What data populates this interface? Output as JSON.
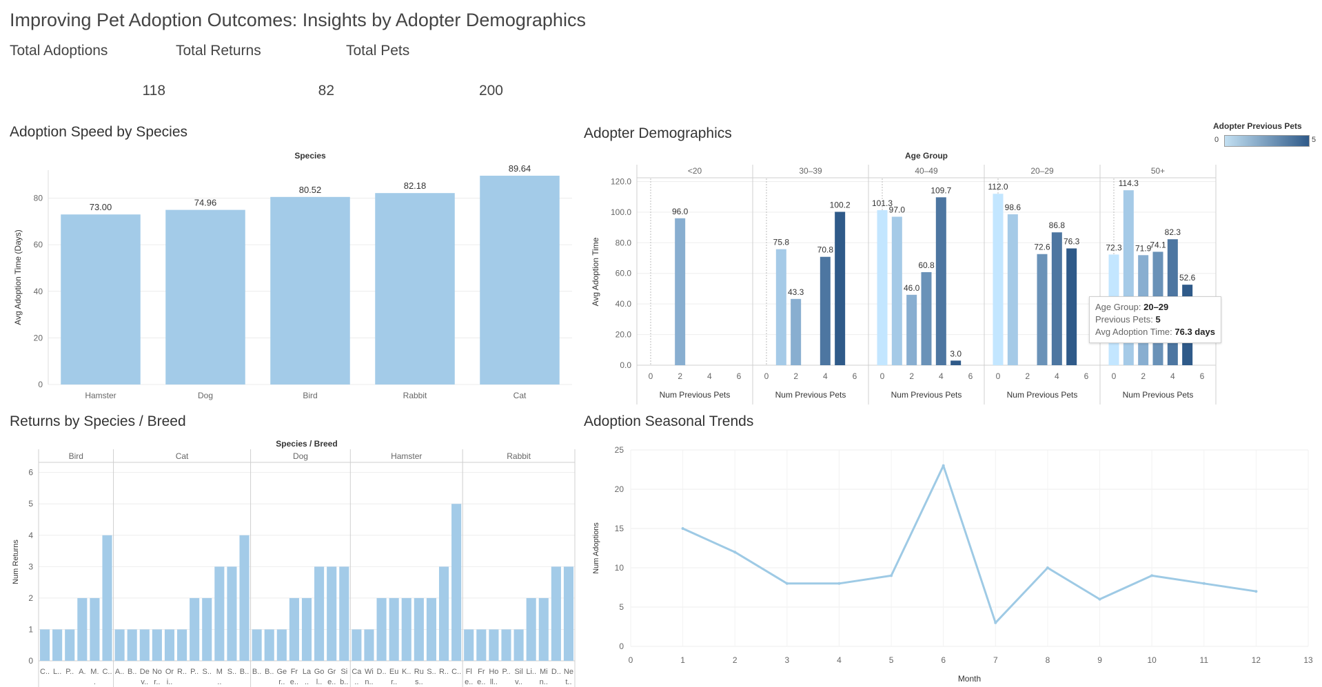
{
  "dashboard": {
    "title": "Improving Pet Adoption Outcomes: Insights by Adopter Demographics",
    "kpis": [
      {
        "label": "Total Adoptions",
        "value": "118"
      },
      {
        "label": "Total Returns",
        "value": "82"
      },
      {
        "label": "Total Pets",
        "value": "200"
      }
    ]
  },
  "colors": {
    "bar": "#a3cbe8",
    "line": "#9ecae5",
    "gradient": [
      "#c3e0f2",
      "#2f5a89"
    ]
  },
  "sheets": {
    "species": "Adoption Speed by Species",
    "demo": "Adopter Demographics",
    "returns": "Returns by Species / Breed",
    "season": "Adoption Seasonal Trends"
  },
  "legend": {
    "title": "Adopter Previous Pets",
    "min": "0",
    "max": "5"
  },
  "tooltip": {
    "rows": [
      {
        "label": "Age Group: ",
        "value": "20–29"
      },
      {
        "label": "Previous Pets: ",
        "value": "5"
      },
      {
        "label": "Avg Adoption Time: ",
        "value": "76.3 days"
      }
    ]
  },
  "chart_data": [
    {
      "type": "bar",
      "title": "Adoption Speed by Species",
      "header": "Species",
      "categories": [
        "Hamster",
        "Dog",
        "Bird",
        "Rabbit",
        "Cat"
      ],
      "values": [
        73.0,
        74.96,
        80.52,
        82.18,
        89.64
      ],
      "labels": [
        "73.00",
        "74.96",
        "80.52",
        "82.18",
        "89.64"
      ],
      "ylabel": "Avg Adoption Time (Days)",
      "yticks": [
        "0",
        "20",
        "40",
        "60",
        "80"
      ],
      "ylim": [
        0,
        92
      ]
    },
    {
      "type": "bar",
      "title": "Adopter Demographics",
      "header": "Age Group",
      "xlabel": "Num Previous Pets",
      "ylabel": "Avg Adoption Time",
      "yticks": [
        "0.0",
        "20.0",
        "40.0",
        "60.0",
        "80.0",
        "100.0",
        "120.0"
      ],
      "xticks": [
        "0",
        "2",
        "4",
        "6"
      ],
      "ylim": [
        0,
        120
      ],
      "color_scale": [
        0,
        5
      ],
      "panels": [
        {
          "name": "<20",
          "bars": [
            {
              "x": 2,
              "y": 96.0,
              "label": "96.0"
            }
          ]
        },
        {
          "name": "30–39",
          "bars": [
            {
              "x": 1,
              "y": 75.8,
              "label": "75.8"
            },
            {
              "x": 2,
              "y": 43.3,
              "label": "43.3"
            },
            {
              "x": 4,
              "y": 70.8,
              "label": "70.8"
            },
            {
              "x": 5,
              "y": 100.2,
              "label": "100.2"
            }
          ]
        },
        {
          "name": "40–49",
          "bars": [
            {
              "x": 0,
              "y": 101.3,
              "label": "101.3"
            },
            {
              "x": 1,
              "y": 97.0,
              "label": "97.0"
            },
            {
              "x": 2,
              "y": 46.0,
              "label": "46.0"
            },
            {
              "x": 3,
              "y": 60.8,
              "label": "60.8"
            },
            {
              "x": 4,
              "y": 109.7,
              "label": "109.7"
            },
            {
              "x": 5,
              "y": 3.0,
              "label": "3.0"
            }
          ]
        },
        {
          "name": "20–29",
          "bars": [
            {
              "x": 0,
              "y": 112.0,
              "label": "112.0"
            },
            {
              "x": 1,
              "y": 98.6,
              "label": "98.6"
            },
            {
              "x": 3,
              "y": 72.6,
              "label": "72.6"
            },
            {
              "x": 4,
              "y": 86.8,
              "label": "86.8"
            },
            {
              "x": 5,
              "y": 76.3,
              "label": "76.3"
            }
          ]
        },
        {
          "name": "50+",
          "bars": [
            {
              "x": 0,
              "y": 72.3,
              "label": "72.3"
            },
            {
              "x": 1,
              "y": 114.3,
              "label": "114.3"
            },
            {
              "x": 2,
              "y": 71.9,
              "label": "71.9"
            },
            {
              "x": 3,
              "y": 74.1,
              "label": "74.1"
            },
            {
              "x": 4,
              "y": 82.3,
              "label": "82.3"
            },
            {
              "x": 5,
              "y": 52.6,
              "label": "52.6"
            }
          ]
        }
      ]
    },
    {
      "type": "bar",
      "title": "Returns by Species / Breed",
      "header": "Species / Breed",
      "ylabel": "Num Returns",
      "yticks": [
        "0",
        "1",
        "2",
        "3",
        "4",
        "5",
        "6"
      ],
      "ylim": [
        0,
        6.3
      ],
      "groups": [
        {
          "name": "Bird",
          "items": [
            {
              "l1": "C..",
              "l2": "",
              "v": 1
            },
            {
              "l1": "L..",
              "l2": "",
              "v": 1
            },
            {
              "l1": "P..",
              "l2": "",
              "v": 1
            },
            {
              "l1": "A.",
              "l2": "",
              "v": 2
            },
            {
              "l1": "M.",
              "l2": ".",
              "v": 2
            },
            {
              "l1": "C..",
              "l2": "",
              "v": 4
            }
          ]
        },
        {
          "name": "Cat",
          "items": [
            {
              "l1": "A..",
              "l2": "",
              "v": 1
            },
            {
              "l1": "B..",
              "l2": "",
              "v": 1
            },
            {
              "l1": "De",
              "l2": "v..",
              "v": 1
            },
            {
              "l1": "No",
              "l2": "r..",
              "v": 1
            },
            {
              "l1": "Or",
              "l2": "i..",
              "v": 1
            },
            {
              "l1": "R..",
              "l2": "",
              "v": 1
            },
            {
              "l1": "P..",
              "l2": "",
              "v": 2
            },
            {
              "l1": "S..",
              "l2": "",
              "v": 2
            },
            {
              "l1": "M",
              "l2": "..",
              "v": 3
            },
            {
              "l1": "S..",
              "l2": "",
              "v": 3
            },
            {
              "l1": "B..",
              "l2": "",
              "v": 4
            }
          ]
        },
        {
          "name": "Dog",
          "items": [
            {
              "l1": "B..",
              "l2": "",
              "v": 1
            },
            {
              "l1": "B..",
              "l2": "",
              "v": 1
            },
            {
              "l1": "Ge",
              "l2": "r..",
              "v": 1
            },
            {
              "l1": "Fr",
              "l2": "e..",
              "v": 2
            },
            {
              "l1": "La",
              "l2": "..",
              "v": 2
            },
            {
              "l1": "Go",
              "l2": "l..",
              "v": 3
            },
            {
              "l1": "Gr",
              "l2": "e..",
              "v": 3
            },
            {
              "l1": "Si",
              "l2": "b..",
              "v": 3
            }
          ]
        },
        {
          "name": "Hamster",
          "items": [
            {
              "l1": "Ca",
              "l2": "..",
              "v": 1
            },
            {
              "l1": "Wi",
              "l2": "n..",
              "v": 1
            },
            {
              "l1": "D..",
              "l2": "",
              "v": 2
            },
            {
              "l1": "Eu",
              "l2": "r..",
              "v": 2
            },
            {
              "l1": "K..",
              "l2": "",
              "v": 2
            },
            {
              "l1": "Ru",
              "l2": "s..",
              "v": 2
            },
            {
              "l1": "S..",
              "l2": "",
              "v": 2
            },
            {
              "l1": "R..",
              "l2": "",
              "v": 3
            },
            {
              "l1": "C..",
              "l2": "",
              "v": 5
            }
          ]
        },
        {
          "name": "Rabbit",
          "items": [
            {
              "l1": "Fl",
              "l2": "e..",
              "v": 1
            },
            {
              "l1": "Fr",
              "l2": "e..",
              "v": 1
            },
            {
              "l1": "Ho",
              "l2": "ll..",
              "v": 1
            },
            {
              "l1": "P..",
              "l2": "",
              "v": 1
            },
            {
              "l1": "Sil",
              "l2": "v..",
              "v": 1
            },
            {
              "l1": "Li..",
              "l2": "",
              "v": 2
            },
            {
              "l1": "Mi",
              "l2": "n..",
              "v": 2
            },
            {
              "l1": "D..",
              "l2": "",
              "v": 3
            },
            {
              "l1": "Ne",
              "l2": "t..",
              "v": 3
            }
          ]
        }
      ]
    },
    {
      "type": "line",
      "title": "Adoption Seasonal Trends",
      "xlabel": "Month",
      "ylabel": "Num Adoptions",
      "x": [
        1,
        2,
        3,
        4,
        5,
        6,
        7,
        8,
        9,
        10,
        11,
        12
      ],
      "y": [
        15,
        12,
        8,
        8,
        9,
        23,
        3,
        10,
        6,
        9,
        8,
        7
      ],
      "xticks": [
        "0",
        "1",
        "2",
        "3",
        "4",
        "5",
        "6",
        "7",
        "8",
        "9",
        "10",
        "11",
        "12",
        "13"
      ],
      "yticks": [
        "0",
        "5",
        "10",
        "15",
        "20",
        "25"
      ],
      "xlim": [
        0,
        13
      ],
      "ylim": [
        0,
        25
      ]
    }
  ]
}
